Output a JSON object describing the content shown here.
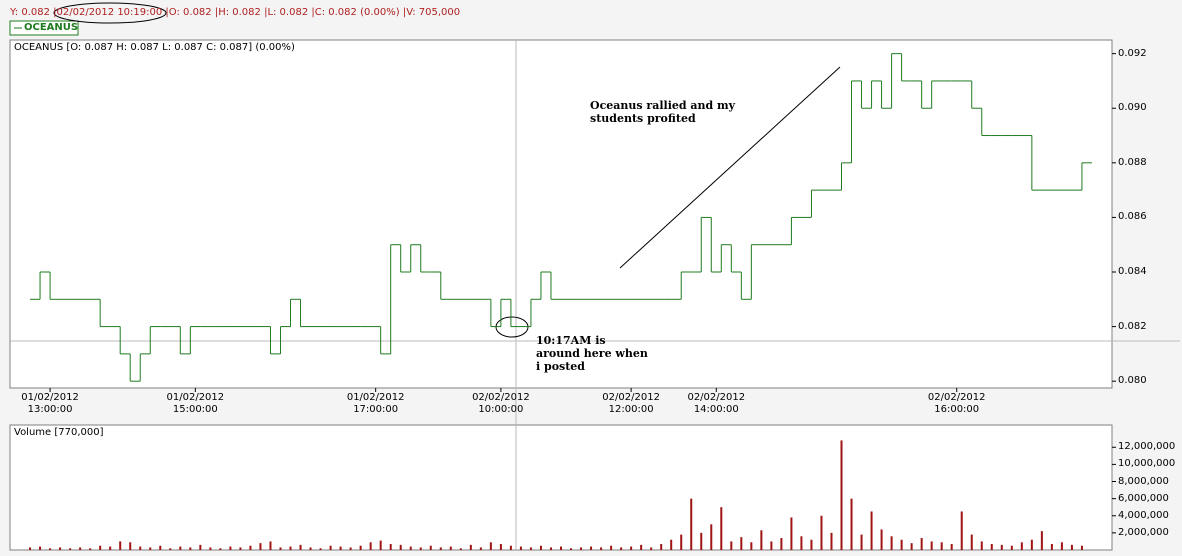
{
  "chart_data": [
    {
      "type": "step",
      "status_line": "Y: 0.082 |02/02/2012 10:19:00 |O: 0.082 |H: 0.082 |L: 0.082 |C: 0.082 (0.00%) |V: 705,000",
      "title": "OCEANUS [O: 0.087  H: 0.087  L: 0.087  C: 0.087] (0.00%)",
      "series": [
        {
          "name": "OCEANUS",
          "color": "#1e7b1e",
          "x": [
            4,
            6,
            8,
            10,
            12,
            14,
            16,
            18,
            20,
            22,
            24,
            26,
            28,
            30,
            32,
            34,
            36,
            38,
            40,
            42,
            44,
            46,
            48,
            50,
            52,
            54,
            56,
            58,
            60,
            62,
            64,
            66,
            68,
            70,
            72,
            74,
            76,
            78,
            80,
            82,
            84,
            86,
            88,
            90,
            92,
            94,
            96,
            98,
            100,
            102,
            104,
            106,
            108,
            110,
            112,
            114,
            116,
            118,
            120,
            122,
            124,
            126,
            128,
            130,
            132,
            134,
            136,
            138,
            140,
            142,
            144,
            146,
            148,
            150,
            152,
            154,
            156,
            158,
            160,
            162,
            164,
            166,
            168,
            170,
            172,
            174,
            176,
            178,
            180,
            182,
            184,
            186,
            188,
            190,
            192,
            194,
            196,
            198,
            200,
            202,
            204,
            206,
            208,
            210,
            212,
            214
          ],
          "values": [
            0.083,
            0.084,
            0.083,
            0.083,
            0.083,
            0.083,
            0.083,
            0.082,
            0.082,
            0.081,
            0.08,
            0.081,
            0.082,
            0.082,
            0.082,
            0.081,
            0.082,
            0.082,
            0.082,
            0.082,
            0.082,
            0.082,
            0.082,
            0.082,
            0.081,
            0.082,
            0.083,
            0.082,
            0.082,
            0.082,
            0.082,
            0.082,
            0.082,
            0.082,
            0.082,
            0.081,
            0.085,
            0.084,
            0.085,
            0.084,
            0.084,
            0.083,
            0.083,
            0.083,
            0.083,
            0.083,
            0.082,
            0.083,
            0.082,
            0.082,
            0.083,
            0.084,
            0.083,
            0.083,
            0.083,
            0.083,
            0.083,
            0.083,
            0.083,
            0.083,
            0.083,
            0.083,
            0.083,
            0.083,
            0.083,
            0.084,
            0.084,
            0.086,
            0.084,
            0.085,
            0.084,
            0.083,
            0.085,
            0.085,
            0.085,
            0.085,
            0.086,
            0.086,
            0.087,
            0.087,
            0.087,
            0.088,
            0.091,
            0.09,
            0.091,
            0.09,
            0.092,
            0.091,
            0.091,
            0.09,
            0.091,
            0.091,
            0.091,
            0.091,
            0.09,
            0.089,
            0.089,
            0.089,
            0.089,
            0.089,
            0.087,
            0.087,
            0.087,
            0.087,
            0.087,
            0.088
          ]
        }
      ],
      "xlim": [
        0,
        220
      ],
      "xticks": [
        {
          "value": 8,
          "label": "01/02/2012 13:00:00"
        },
        {
          "value": 37,
          "label": "01/02/2012 15:00:00"
        },
        {
          "value": 73,
          "label": "01/02/2012 17:00:00"
        },
        {
          "value": 98,
          "label": "02/02/2012 10:00:00"
        },
        {
          "value": 124,
          "label": "02/02/2012 12:00:00"
        },
        {
          "value": 141,
          "label": "02/02/2012 14:00:00"
        },
        {
          "value": 189,
          "label": "02/02/2012 16:00:00"
        }
      ],
      "ylim": [
        0.07975,
        0.0925
      ],
      "yticks": [
        {
          "value": 0.08,
          "label": "0.080"
        },
        0.082,
        0.084,
        0.086,
        0.088,
        {
          "value": 0.09,
          "label": "0.090"
        },
        0.092
      ],
      "annotations": [
        {
          "lines": [
            "Oceanus rallied and my",
            "students profited"
          ]
        },
        {
          "lines": [
            "10:17AM is",
            "around here when",
            "i posted"
          ]
        }
      ]
    },
    {
      "type": "bar",
      "title": "Volume [770,000]",
      "color": "#a01414",
      "x": [
        4,
        6,
        8,
        10,
        12,
        14,
        16,
        18,
        20,
        22,
        24,
        26,
        28,
        30,
        32,
        34,
        36,
        38,
        40,
        42,
        44,
        46,
        48,
        50,
        52,
        54,
        56,
        58,
        60,
        62,
        64,
        66,
        68,
        70,
        72,
        74,
        76,
        78,
        80,
        82,
        84,
        86,
        88,
        90,
        92,
        94,
        96,
        98,
        100,
        102,
        104,
        106,
        108,
        110,
        112,
        114,
        116,
        118,
        120,
        122,
        124,
        126,
        128,
        130,
        132,
        134,
        136,
        138,
        140,
        142,
        144,
        146,
        148,
        150,
        152,
        154,
        156,
        158,
        160,
        162,
        164,
        166,
        168,
        170,
        172,
        174,
        176,
        178,
        180,
        182,
        184,
        186,
        188,
        190,
        192,
        194,
        196,
        198,
        200,
        202,
        204,
        206,
        208,
        210,
        212,
        214
      ],
      "values": [
        300000,
        400000,
        200000,
        300000,
        200000,
        300000,
        200000,
        500000,
        400000,
        1000000,
        900000,
        400000,
        300000,
        500000,
        200000,
        400000,
        300000,
        600000,
        300000,
        200000,
        400000,
        300000,
        500000,
        800000,
        1000000,
        300000,
        400000,
        600000,
        300000,
        200000,
        500000,
        400000,
        300000,
        500000,
        900000,
        1100000,
        700000,
        600000,
        400000,
        300000,
        500000,
        300000,
        400000,
        200000,
        600000,
        300000,
        900000,
        700000,
        500000,
        400000,
        300000,
        500000,
        300000,
        400000,
        200000,
        300000,
        400000,
        300000,
        500000,
        300000,
        400000,
        600000,
        300000,
        700000,
        1200000,
        1800000,
        6000000,
        2000000,
        3000000,
        5000000,
        1000000,
        1500000,
        900000,
        2300000,
        1000000,
        1400000,
        3800000,
        1600000,
        1200000,
        4000000,
        2000000,
        12800000,
        6000000,
        1800000,
        4500000,
        2400000,
        1600000,
        1200000,
        800000,
        1400000,
        1000000,
        900000,
        700000,
        4500000,
        1800000,
        1000000,
        700000,
        600000,
        500000,
        900000,
        1200000,
        2200000,
        700000,
        900000,
        600000,
        500000
      ],
      "xlim": [
        0,
        220
      ],
      "ylim": [
        0,
        14600000
      ],
      "yticks": [
        {
          "value": 2000000,
          "label": "2,000,000"
        },
        {
          "value": 4000000,
          "label": "4,000,000"
        },
        {
          "value": 6000000,
          "label": "6,000,000"
        },
        {
          "value": 8000000,
          "label": "8,000,000"
        },
        {
          "value": 10000000,
          "label": "10,000,000"
        },
        {
          "value": 12000000,
          "label": "12,000,000"
        }
      ]
    }
  ]
}
